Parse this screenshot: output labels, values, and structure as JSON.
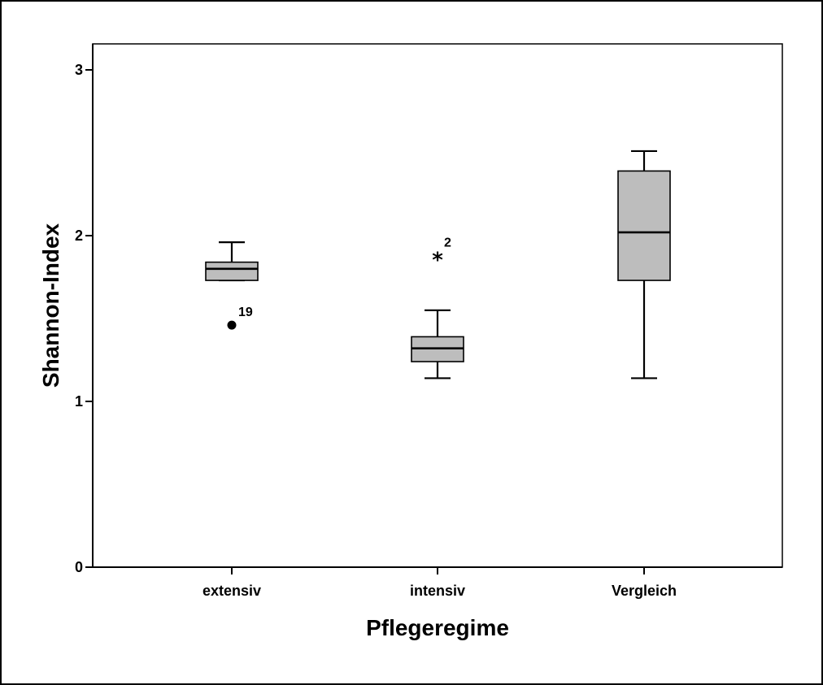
{
  "chart_data": {
    "type": "box",
    "xlabel": "Pflegeregime",
    "ylabel": "Shannon-Index",
    "ylim": [
      0,
      3.15
    ],
    "yticks": [
      0,
      1,
      2,
      3
    ],
    "ytick_labels": [
      "0",
      "1",
      "2",
      "3"
    ],
    "box_color": "#bdbdbd",
    "grid": false,
    "categories": [
      "extensiv",
      "intensiv",
      "Vergleich"
    ],
    "boxes": [
      {
        "category": "extensiv",
        "whisker_low": 1.73,
        "q1": 1.73,
        "median": 1.8,
        "q3": 1.84,
        "whisker_high": 1.96,
        "outliers": [
          {
            "value": 1.46,
            "marker": "circle",
            "label": "19"
          }
        ]
      },
      {
        "category": "intensiv",
        "whisker_low": 1.14,
        "q1": 1.24,
        "median": 1.32,
        "q3": 1.39,
        "whisker_high": 1.55,
        "outliers": [
          {
            "value": 1.88,
            "marker": "star",
            "label": "2"
          }
        ]
      },
      {
        "category": "Vergleich",
        "whisker_low": 1.14,
        "q1": 1.73,
        "median": 2.02,
        "q3": 2.39,
        "whisker_high": 2.51,
        "outliers": []
      }
    ]
  }
}
